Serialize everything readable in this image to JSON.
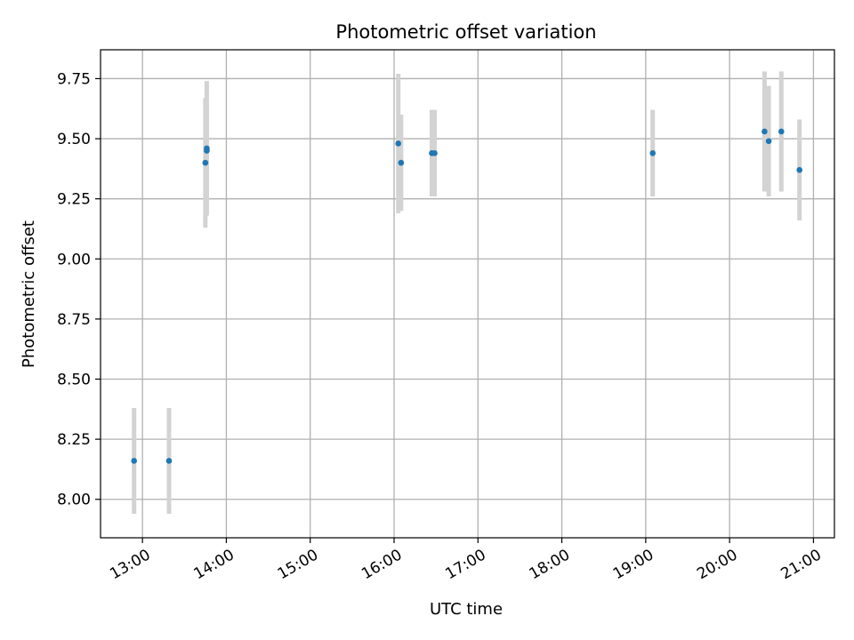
{
  "chart_data": {
    "type": "scatter",
    "title": "Photometric offset variation",
    "xlabel": "UTC time",
    "ylabel": "Photometric offset",
    "xlim": [
      "12:30",
      "21:15"
    ],
    "ylim": [
      7.84,
      9.87
    ],
    "grid": true,
    "x_ticks": [
      "13:00",
      "14:00",
      "15:00",
      "16:00",
      "17:00",
      "18:00",
      "19:00",
      "20:00",
      "21:00"
    ],
    "y_ticks": [
      "8.00",
      "8.25",
      "8.50",
      "8.75",
      "9.00",
      "9.25",
      "9.50",
      "9.75"
    ],
    "colors": {
      "point": "#1f77b4",
      "errorbar": "#d3d3d3",
      "grid": "#b0b0b0"
    },
    "series": [
      {
        "points": [
          {
            "time": "12:54",
            "y": 8.16,
            "err": 0.22
          },
          {
            "time": "13:19",
            "y": 8.16,
            "err": 0.22
          },
          {
            "time": "13:45",
            "y": 9.4,
            "err": 0.27
          },
          {
            "time": "13:46",
            "y": 9.45,
            "err": 0.22
          },
          {
            "time": "13:46",
            "y": 9.46,
            "err": 0.28
          },
          {
            "time": "16:03",
            "y": 9.48,
            "err": 0.29
          },
          {
            "time": "16:05",
            "y": 9.4,
            "err": 0.2
          },
          {
            "time": "16:27",
            "y": 9.44,
            "err": 0.18
          },
          {
            "time": "16:29",
            "y": 9.44,
            "err": 0.18
          },
          {
            "time": "19:05",
            "y": 9.44,
            "err": 0.18
          },
          {
            "time": "20:25",
            "y": 9.53,
            "err": 0.25
          },
          {
            "time": "20:28",
            "y": 9.49,
            "err": 0.23
          },
          {
            "time": "20:37",
            "y": 9.53,
            "err": 0.25
          },
          {
            "time": "20:50",
            "y": 9.37,
            "err": 0.21
          }
        ]
      }
    ]
  }
}
